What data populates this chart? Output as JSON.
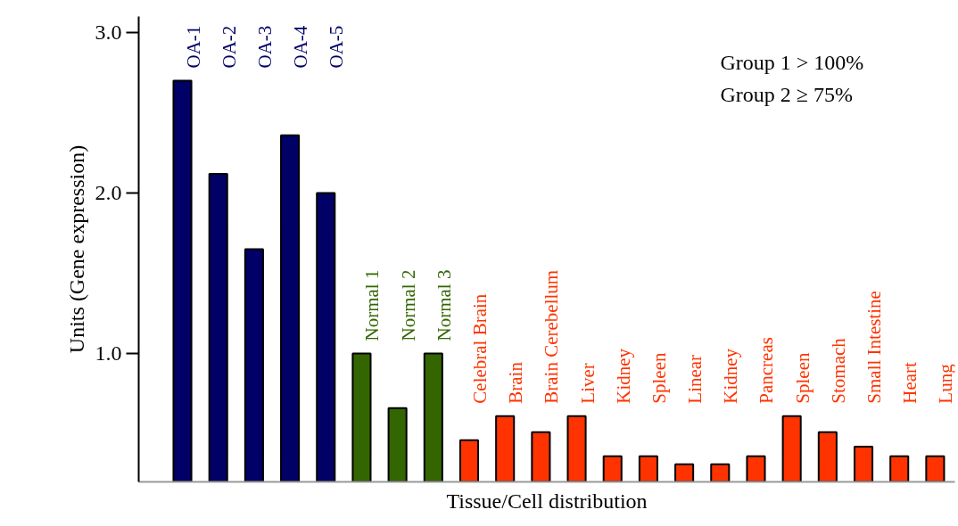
{
  "chart_data": {
    "type": "bar",
    "xlabel": "Tissue/Cell distribution",
    "ylabel": "Units (Gene expression)",
    "categories": [
      "OA-1",
      "OA-2",
      "OA-3",
      "OA-4",
      "OA-5",
      "Normal 1",
      "Normal 2",
      "Normal 3",
      "Celebral Brain",
      "Brain",
      "Brain Cerebellum",
      "Liver",
      "Kidney",
      "Spleen",
      "Linear",
      "Kidney",
      "Pancreas",
      "Spleen",
      "Stomach",
      "Small Intestine",
      "Heart",
      "Lung"
    ],
    "values": [
      2.7,
      2.12,
      1.65,
      2.36,
      2.0,
      1.0,
      0.66,
      1.0,
      0.46,
      0.61,
      0.51,
      0.61,
      0.36,
      0.36,
      0.31,
      0.31,
      0.36,
      0.61,
      0.51,
      0.42,
      0.36,
      0.36
    ],
    "colors": [
      "#000066",
      "#000066",
      "#000066",
      "#000066",
      "#000066",
      "#336600",
      "#336600",
      "#336600",
      "#ff3300",
      "#ff3300",
      "#ff3300",
      "#ff3300",
      "#ff3300",
      "#ff3300",
      "#ff3300",
      "#ff3300",
      "#ff3300",
      "#ff3300",
      "#ff3300",
      "#ff3300",
      "#ff3300",
      "#ff3300"
    ],
    "ylim": [
      0.2,
      3.1
    ],
    "yticks": [
      {
        "value": 1,
        "label": "1.0"
      },
      {
        "value": 2,
        "label": "2.0"
      },
      {
        "value": 3,
        "label": "3.0"
      }
    ],
    "annotations": [
      "Group 1 > 100%",
      "Group 2 ≥ 75%"
    ],
    "grid": false
  }
}
